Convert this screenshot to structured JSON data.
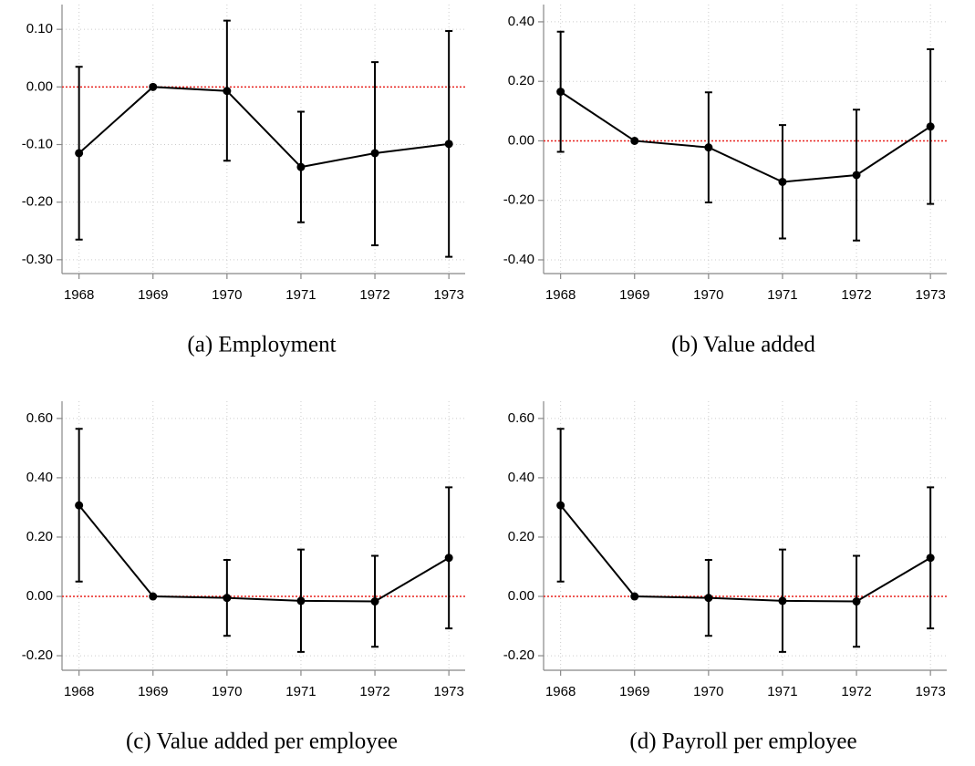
{
  "chart_data": [
    {
      "type": "line",
      "title": "(a) Employment",
      "color": "#000000",
      "x": [
        1968,
        1969,
        1970,
        1971,
        1972,
        1973
      ],
      "values": [
        -0.115,
        0,
        -0.007,
        -0.139,
        -0.115,
        -0.099
      ],
      "ci_low": [
        -0.265,
        0,
        -0.128,
        -0.235,
        -0.275,
        -0.295
      ],
      "ci_high": [
        0.035,
        0,
        0.115,
        -0.043,
        0.043,
        0.097
      ],
      "xlim": [
        1967.77,
        1973.22
      ],
      "xticks": [
        1968,
        1969,
        1970,
        1971,
        1972,
        1973
      ],
      "ylim": [
        -0.324,
        0.143
      ],
      "yticks": [
        {
          "value": -0.3,
          "label": "-0.30"
        },
        {
          "value": -0.2,
          "label": "-0.20"
        },
        {
          "value": -0.1,
          "label": "-0.10"
        },
        {
          "value": 0,
          "label": "0.00"
        },
        {
          "value": 0.1,
          "label": "0.10"
        }
      ],
      "grid": true,
      "reference_line": 0,
      "reference_color": "#e8201c"
    },
    {
      "type": "line",
      "title": "(b) Value added",
      "color": "#000000",
      "x": [
        1968,
        1969,
        1970,
        1971,
        1972,
        1973
      ],
      "values": [
        0.165,
        0,
        -0.022,
        -0.138,
        -0.115,
        0.048
      ],
      "ci_low": [
        -0.037,
        0,
        -0.207,
        -0.328,
        -0.335,
        -0.212
      ],
      "ci_high": [
        0.367,
        0,
        0.163,
        0.053,
        0.105,
        0.308
      ],
      "xlim": [
        1967.77,
        1973.22
      ],
      "xticks": [
        1968,
        1969,
        1970,
        1971,
        1972,
        1973
      ],
      "ylim": [
        -0.446,
        0.458
      ],
      "yticks": [
        {
          "value": -0.4,
          "label": "-0.40"
        },
        {
          "value": -0.2,
          "label": "-0.20"
        },
        {
          "value": 0,
          "label": "0.00"
        },
        {
          "value": 0.2,
          "label": "0.20"
        },
        {
          "value": 0.4,
          "label": "0.40"
        }
      ],
      "grid": true,
      "reference_line": 0,
      "reference_color": "#e8201c"
    },
    {
      "type": "line",
      "title": "(c) Value added per employee",
      "color": "#000000",
      "x": [
        1968,
        1969,
        1970,
        1971,
        1972,
        1973
      ],
      "values": [
        0.307,
        0,
        -0.005,
        -0.015,
        -0.017,
        0.13
      ],
      "ci_low": [
        0.05,
        0,
        -0.133,
        -0.187,
        -0.17,
        -0.108
      ],
      "ci_high": [
        0.565,
        0,
        0.123,
        0.158,
        0.137,
        0.368
      ],
      "xlim": [
        1967.77,
        1973.22
      ],
      "xticks": [
        1968,
        1969,
        1970,
        1971,
        1972,
        1973
      ],
      "ylim": [
        -0.249,
        0.658
      ],
      "yticks": [
        {
          "value": -0.2,
          "label": "-0.20"
        },
        {
          "value": 0,
          "label": "0.00"
        },
        {
          "value": 0.2,
          "label": "0.20"
        },
        {
          "value": 0.4,
          "label": "0.40"
        },
        {
          "value": 0.6,
          "label": "0.60"
        }
      ],
      "grid": true,
      "reference_line": 0,
      "reference_color": "#e8201c"
    },
    {
      "type": "line",
      "title": "(d) Payroll per employee",
      "color": "#000000",
      "x": [
        1968,
        1969,
        1970,
        1971,
        1972,
        1973
      ],
      "values": [
        0.307,
        0,
        -0.005,
        -0.015,
        -0.017,
        0.13
      ],
      "ci_low": [
        0.05,
        0,
        -0.133,
        -0.187,
        -0.17,
        -0.108
      ],
      "ci_high": [
        0.565,
        0,
        0.123,
        0.158,
        0.137,
        0.368
      ],
      "xlim": [
        1967.77,
        1973.22
      ],
      "xticks": [
        1968,
        1969,
        1970,
        1971,
        1972,
        1973
      ],
      "ylim": [
        -0.249,
        0.658
      ],
      "yticks": [
        {
          "value": -0.2,
          "label": "-0.20"
        },
        {
          "value": 0,
          "label": "0.00"
        },
        {
          "value": 0.2,
          "label": "0.20"
        },
        {
          "value": 0.4,
          "label": "0.40"
        },
        {
          "value": 0.6,
          "label": "0.60"
        }
      ],
      "grid": true,
      "reference_line": 0,
      "reference_color": "#e8201c"
    }
  ]
}
